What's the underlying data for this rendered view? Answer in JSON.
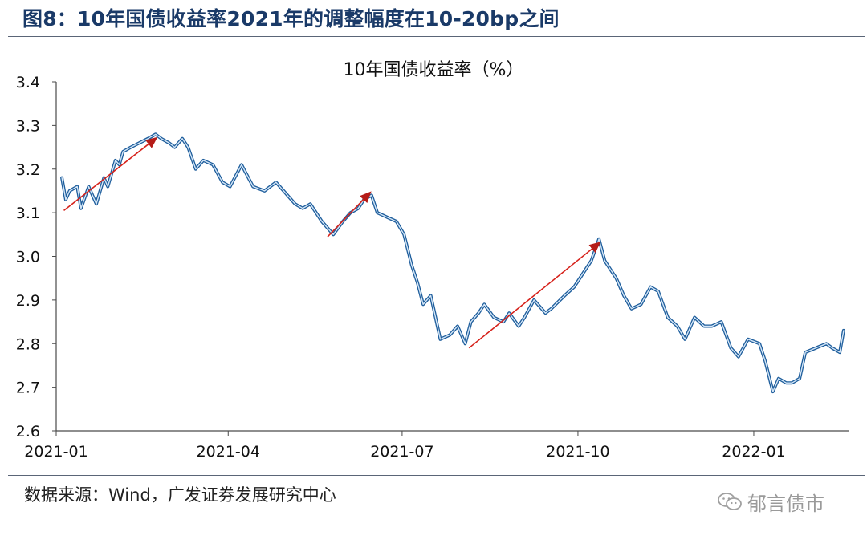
{
  "figure_title": "图8：10年国债收益率2021年的调整幅度在10-20bp之间",
  "source_text": "数据来源：Wind，广发证券发展研究中心",
  "watermark_text": "郁言债市",
  "watermark_icon": "wechat-icon",
  "colors": {
    "title": "#1a3a68",
    "series": "#3a78b5",
    "arrows": "#d6221b",
    "axis": "#4a4a4a"
  },
  "chart_data": {
    "type": "line",
    "title": "10年国债收益率（%）",
    "xlabel": "",
    "ylabel": "",
    "x_ticks": [
      "2021-01",
      "2021-04",
      "2021-07",
      "2021-10",
      "2022-01"
    ],
    "y_ticks": [
      "3.4",
      "3.3",
      "3.2",
      "3.1",
      "3.0",
      "2.9",
      "2.8",
      "2.7",
      "2.6"
    ],
    "ylim": [
      2.6,
      3.4
    ],
    "xlim": [
      "2021-01-01",
      "2022-02-20"
    ],
    "grid": false,
    "legend": "none",
    "series": [
      {
        "x": [
          "2021-01-04",
          "2021-01-06",
          "2021-01-08",
          "2021-01-12",
          "2021-01-14",
          "2021-01-18",
          "2021-01-20",
          "2021-01-22",
          "2021-01-26",
          "2021-01-28",
          "2021-02-01",
          "2021-02-03",
          "2021-02-05",
          "2021-02-09",
          "2021-02-18",
          "2021-02-22",
          "2021-02-25",
          "2021-03-01",
          "2021-03-04",
          "2021-03-08",
          "2021-03-11",
          "2021-03-15",
          "2021-03-19",
          "2021-03-24",
          "2021-03-29",
          "2021-04-02",
          "2021-04-08",
          "2021-04-14",
          "2021-04-20",
          "2021-04-26",
          "2021-05-06",
          "2021-05-10",
          "2021-05-14",
          "2021-05-20",
          "2021-05-26",
          "2021-05-31",
          "2021-06-04",
          "2021-06-08",
          "2021-06-11",
          "2021-06-15",
          "2021-06-18",
          "2021-06-23",
          "2021-06-28",
          "2021-07-02",
          "2021-07-06",
          "2021-07-09",
          "2021-07-12",
          "2021-07-16",
          "2021-07-21",
          "2021-07-26",
          "2021-07-30",
          "2021-08-03",
          "2021-08-06",
          "2021-08-10",
          "2021-08-13",
          "2021-08-18",
          "2021-08-23",
          "2021-08-26",
          "2021-08-31",
          "2021-09-03",
          "2021-09-08",
          "2021-09-14",
          "2021-09-17",
          "2021-09-24",
          "2021-09-29",
          "2021-10-08",
          "2021-10-12",
          "2021-10-15",
          "2021-10-18",
          "2021-10-21",
          "2021-10-25",
          "2021-10-29",
          "2021-11-03",
          "2021-11-08",
          "2021-11-12",
          "2021-11-17",
          "2021-11-22",
          "2021-11-26",
          "2021-12-01",
          "2021-12-06",
          "2021-12-10",
          "2021-12-15",
          "2021-12-20",
          "2021-12-24",
          "2021-12-29",
          "2022-01-04",
          "2022-01-07",
          "2022-01-11",
          "2022-01-14",
          "2022-01-18",
          "2022-01-21",
          "2022-01-25",
          "2022-01-28",
          "2022-02-08",
          "2022-02-11",
          "2022-02-15",
          "2022-02-17"
        ],
        "y": [
          3.18,
          3.13,
          3.15,
          3.16,
          3.11,
          3.16,
          3.14,
          3.12,
          3.18,
          3.16,
          3.22,
          3.21,
          3.24,
          3.25,
          3.27,
          3.28,
          3.27,
          3.26,
          3.25,
          3.27,
          3.25,
          3.2,
          3.22,
          3.21,
          3.17,
          3.16,
          3.21,
          3.16,
          3.15,
          3.17,
          3.12,
          3.11,
          3.12,
          3.08,
          3.05,
          3.08,
          3.1,
          3.11,
          3.13,
          3.14,
          3.1,
          3.09,
          3.08,
          3.05,
          2.98,
          2.94,
          2.89,
          2.91,
          2.81,
          2.82,
          2.84,
          2.8,
          2.85,
          2.87,
          2.89,
          2.86,
          2.85,
          2.87,
          2.84,
          2.86,
          2.9,
          2.87,
          2.88,
          2.91,
          2.93,
          2.99,
          3.04,
          2.99,
          2.97,
          2.95,
          2.91,
          2.88,
          2.89,
          2.93,
          2.92,
          2.86,
          2.84,
          2.81,
          2.86,
          2.84,
          2.84,
          2.85,
          2.79,
          2.77,
          2.81,
          2.8,
          2.76,
          2.69,
          2.72,
          2.71,
          2.71,
          2.72,
          2.78,
          2.8,
          2.79,
          2.78,
          2.83
        ]
      }
    ],
    "annotations": [
      {
        "type": "arrow",
        "from": [
          "2021-01-05",
          3.105
        ],
        "to": [
          "2021-02-22",
          3.27
        ]
      },
      {
        "type": "arrow",
        "from": [
          "2021-05-23",
          3.045
        ],
        "to": [
          "2021-06-14",
          3.145
        ]
      },
      {
        "type": "arrow",
        "from": [
          "2021-08-05",
          2.79
        ],
        "to": [
          "2021-10-12",
          3.03
        ]
      }
    ]
  }
}
